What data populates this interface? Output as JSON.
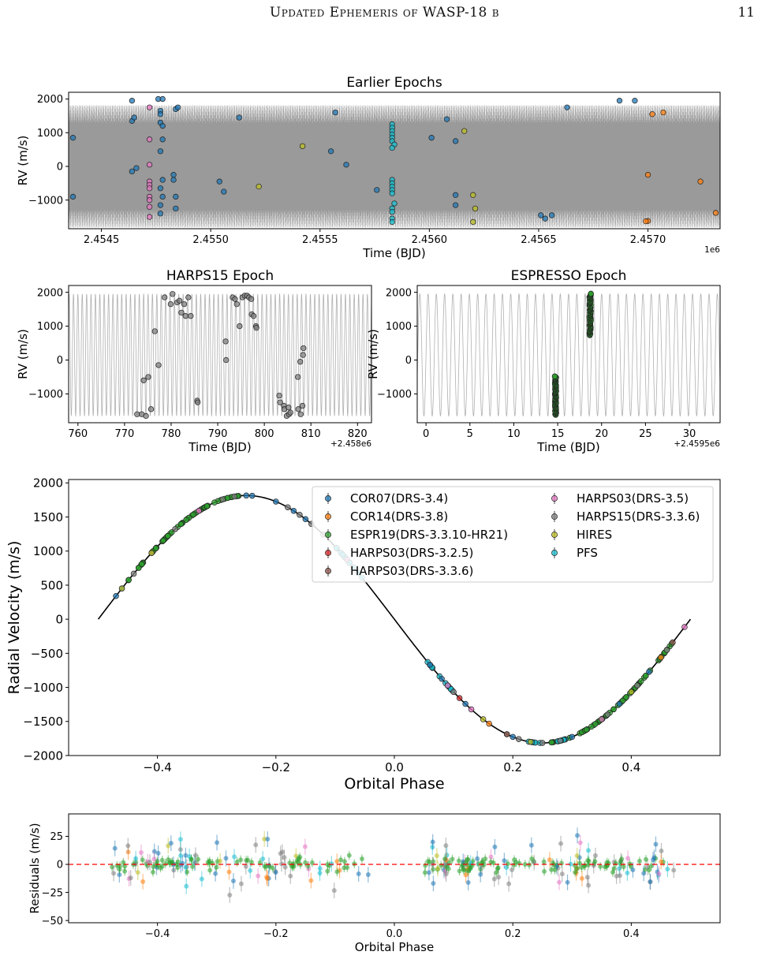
{
  "header": {
    "title": "Updated Ephemeris of WASP-18 b",
    "page_number": "11"
  },
  "colors": {
    "COR07": "#1f77b4",
    "COR14": "#ff7f0e",
    "ESPR19": "#2ca02c",
    "HARPS03_325": "#d62728",
    "HARPS03_336": "#8c564b",
    "HARPS03_35": "#e377c2",
    "HARPS15": "#7f7f7f",
    "HIRES": "#bcbd22",
    "PFS": "#17becf",
    "model": "#9a9a9a",
    "zero_line": "#ff0000"
  },
  "model": {
    "period_days": 0.94145,
    "semi_amplitude": 1815
  },
  "chart_data": [
    {
      "id": "earlier",
      "type": "scatter",
      "title": "Earlier Epochs",
      "xlabel": "Time (BJD)",
      "ylabel": "RV (m/s)",
      "x_offset_label": "1e6",
      "xlim": [
        2.45435,
        2.45733
      ],
      "ylim": [
        -1850,
        2200
      ],
      "xticks": [
        2.4545,
        2.455,
        2.4555,
        2.456,
        2.4565,
        2.457
      ],
      "xtick_labels": [
        "2.4545",
        "2.4550",
        "2.4555",
        "2.4560",
        "2.4565",
        "2.4570"
      ],
      "yticks": [
        -1000,
        0,
        1000,
        2000
      ],
      "ytick_labels": [
        "−1000",
        "0",
        "1000",
        "2000"
      ],
      "series": [
        {
          "key": "COR07",
          "points": [
            [
              2.45437,
              850
            ],
            [
              2.45437,
              -900
            ],
            [
              2.45464,
              1950
            ],
            [
              2.45464,
              1350
            ],
            [
              2.45464,
              -150
            ],
            [
              2.45465,
              1450
            ],
            [
              2.45466,
              -50
            ],
            [
              2.45476,
              2000
            ],
            [
              2.45478,
              2000
            ],
            [
              2.45477,
              1650
            ],
            [
              2.45477,
              1550
            ],
            [
              2.45477,
              1300
            ],
            [
              2.45478,
              1200
            ],
            [
              2.45478,
              800
            ],
            [
              2.45477,
              450
            ],
            [
              2.45478,
              -400
            ],
            [
              2.45477,
              -650
            ],
            [
              2.45478,
              -900
            ],
            [
              2.45477,
              -1150
            ],
            [
              2.45477,
              -1400
            ],
            [
              2.45484,
              1700
            ],
            [
              2.45485,
              1750
            ],
            [
              2.45483,
              -250
            ],
            [
              2.45483,
              -400
            ],
            [
              2.45484,
              -900
            ],
            [
              2.45484,
              -1250
            ],
            [
              2.45504,
              -450
            ],
            [
              2.45506,
              -750
            ],
            [
              2.45513,
              1450
            ],
            [
              2.45555,
              450
            ],
            [
              2.45557,
              1600
            ],
            [
              2.45562,
              50
            ],
            [
              2.45576,
              -700
            ],
            [
              2.45601,
              850
            ],
            [
              2.45608,
              1400
            ],
            [
              2.45612,
              750
            ],
            [
              2.45612,
              -850
            ],
            [
              2.45612,
              -1150
            ],
            [
              2.45651,
              -1450
            ],
            [
              2.45653,
              -1550
            ],
            [
              2.45656,
              -1450
            ],
            [
              2.45663,
              1750
            ],
            [
              2.45687,
              1950
            ],
            [
              2.45694,
              1950
            ]
          ]
        },
        {
          "key": "HARPS03_35",
          "points": [
            [
              2.45472,
              1750
            ],
            [
              2.45472,
              800
            ],
            [
              2.45472,
              50
            ],
            [
              2.45472,
              -450
            ],
            [
              2.45472,
              -550
            ],
            [
              2.45472,
              -650
            ],
            [
              2.45472,
              -900
            ],
            [
              2.45472,
              -1000
            ],
            [
              2.45472,
              -1200
            ],
            [
              2.45472,
              -1500
            ]
          ]
        },
        {
          "key": "HIRES",
          "points": [
            [
              2.45522,
              -600
            ],
            [
              2.45542,
              600
            ],
            [
              2.45616,
              1050
            ],
            [
              2.4562,
              -850
            ],
            [
              2.45621,
              -1250
            ],
            [
              2.4562,
              -1650
            ]
          ]
        },
        {
          "key": "PFS",
          "points": [
            [
              2.45583,
              1250
            ],
            [
              2.45583,
              1150
            ],
            [
              2.45583,
              1050
            ],
            [
              2.45583,
              950
            ],
            [
              2.45583,
              850
            ],
            [
              2.45583,
              750
            ],
            [
              2.45584,
              650
            ],
            [
              2.45583,
              550
            ],
            [
              2.45583,
              -400
            ],
            [
              2.45583,
              -500
            ],
            [
              2.45583,
              -600
            ],
            [
              2.45583,
              -700
            ],
            [
              2.45583,
              -800
            ],
            [
              2.45584,
              -1100
            ],
            [
              2.45583,
              -1250
            ],
            [
              2.45583,
              -1350
            ],
            [
              2.45583,
              -1550
            ],
            [
              2.45583,
              -1650
            ]
          ]
        },
        {
          "key": "COR14",
          "points": [
            [
              2.45702,
              1550
            ],
            [
              2.45707,
              1600
            ],
            [
              2.457,
              -250
            ],
            [
              2.457,
              -1620
            ],
            [
              2.45699,
              -1630
            ],
            [
              2.45724,
              -450
            ],
            [
              2.45731,
              -1380
            ]
          ]
        }
      ]
    },
    {
      "id": "harps15",
      "type": "scatter",
      "title": "HARPS15 Epoch",
      "xlabel": "Time (BJD)",
      "ylabel": "RV (m/s)",
      "x_offset_label": "+2.458e6",
      "xlim": [
        758,
        823
      ],
      "ylim": [
        -1850,
        2200
      ],
      "xticks": [
        760,
        770,
        780,
        790,
        800,
        810,
        820
      ],
      "xtick_labels": [
        "760",
        "770",
        "780",
        "790",
        "800",
        "810",
        "820"
      ],
      "yticks": [
        -1000,
        0,
        1000,
        2000
      ],
      "ytick_labels": [
        "−1000",
        "0",
        "1000",
        "2000"
      ],
      "series": [
        {
          "key": "HARPS15",
          "points": [
            [
              772.7,
              -1600
            ],
            [
              773.7,
              -1600
            ],
            [
              774.6,
              -1650
            ],
            [
              774.1,
              -600
            ],
            [
              775.1,
              -500
            ],
            [
              775.7,
              -1450
            ],
            [
              776.5,
              850
            ],
            [
              777.3,
              -150
            ],
            [
              778.6,
              1850
            ],
            [
              779.9,
              1650
            ],
            [
              780.3,
              1950
            ],
            [
              781.3,
              1700
            ],
            [
              781.8,
              1750
            ],
            [
              782.2,
              1400
            ],
            [
              782.8,
              1650
            ],
            [
              783.1,
              1300
            ],
            [
              783.7,
              1850
            ],
            [
              784.2,
              1300
            ],
            [
              785.6,
              -1200
            ],
            [
              785.7,
              -1250
            ],
            [
              791.7,
              550
            ],
            [
              791.8,
              0
            ],
            [
              793.2,
              1850
            ],
            [
              793.7,
              1800
            ],
            [
              794.1,
              1650
            ],
            [
              794.7,
              1000
            ],
            [
              795.3,
              1850
            ],
            [
              795.8,
              1900
            ],
            [
              796.3,
              1900
            ],
            [
              796.7,
              1850
            ],
            [
              797.2,
              1800
            ],
            [
              797.3,
              1350
            ],
            [
              797.7,
              1300
            ],
            [
              798.2,
              1000
            ],
            [
              798.3,
              950
            ],
            [
              803.2,
              -1050
            ],
            [
              803.4,
              -1250
            ],
            [
              804.2,
              -1350
            ],
            [
              804.3,
              -1450
            ],
            [
              804.8,
              -1650
            ],
            [
              805.3,
              -1600
            ],
            [
              805.6,
              -1550
            ],
            [
              805.2,
              -1400
            ],
            [
              807.2,
              -500
            ],
            [
              807.3,
              -1450
            ],
            [
              807.7,
              -50
            ],
            [
              807.8,
              -1600
            ],
            [
              808.2,
              -1350
            ],
            [
              808.3,
              150
            ],
            [
              808.4,
              350
            ]
          ]
        }
      ]
    },
    {
      "id": "espresso",
      "type": "scatter",
      "title": "ESPRESSO Epoch",
      "xlabel": "Time (BJD)",
      "ylabel": "RV (m/s)",
      "x_offset_label": "+2.4595e6",
      "xlim": [
        -1,
        33.5
      ],
      "ylim": [
        -1850,
        2200
      ],
      "xticks": [
        0,
        5,
        10,
        15,
        20,
        25,
        30
      ],
      "xtick_labels": [
        "0",
        "5",
        "10",
        "15",
        "20",
        "25",
        "30"
      ],
      "yticks": [
        -1000,
        0,
        1000,
        2000
      ],
      "ytick_labels": [
        "−1000",
        "0",
        "1000",
        "2000"
      ],
      "series": [
        {
          "key": "ESPR19",
          "clusters": [
            {
              "x": 14.75,
              "y_min": -1620,
              "y_max": -480
            },
            {
              "x": 18.7,
              "y_min": 730,
              "y_max": 1960
            }
          ]
        }
      ]
    },
    {
      "id": "phase",
      "type": "scatter",
      "xlabel": "Orbital Phase",
      "ylabel": "Radial Velocity (m/s)",
      "xlim": [
        -0.55,
        0.55
      ],
      "ylim": [
        -2000,
        2050
      ],
      "xticks": [
        -0.4,
        -0.2,
        0.0,
        0.2,
        0.4
      ],
      "xtick_labels": [
        "−0.4",
        "−0.2",
        "0.0",
        "0.2",
        "0.4"
      ],
      "yticks": [
        -2000,
        -1500,
        -1000,
        -500,
        0,
        500,
        1000,
        1500,
        2000
      ],
      "ytick_labels": [
        "−2000",
        "−1500",
        "−1000",
        "−500",
        "0",
        "500",
        "1000",
        "1500",
        "2000"
      ],
      "legend": {
        "position": "upper-right",
        "entries": [
          {
            "key": "COR07",
            "label": "COR07(DRS-3.4)"
          },
          {
            "key": "COR14",
            "label": "COR14(DRS-3.8)"
          },
          {
            "key": "ESPR19",
            "label": "ESPR19(DRS-3.3.10-HR21)"
          },
          {
            "key": "HARPS03_325",
            "label": "HARPS03(DRS-3.2.5)"
          },
          {
            "key": "HARPS03_336",
            "label": "HARPS03(DRS-3.3.6)"
          },
          {
            "key": "HARPS03_35",
            "label": "HARPS03(DRS-3.5)"
          },
          {
            "key": "HARPS15",
            "label": "HARPS15(DRS-3.3.6)"
          },
          {
            "key": "HIRES",
            "label": "HIRES"
          },
          {
            "key": "PFS",
            "label": "PFS"
          }
        ]
      },
      "series": [
        {
          "key": "ESPR19",
          "phase_ranges": [
            [
              -0.45,
              -0.26
            ],
            [
              0.26,
              0.47
            ]
          ],
          "n": 120
        },
        {
          "key": "PFS",
          "phase_ranges": [
            [
              0.05,
              0.1
            ],
            [
              0.22,
              0.3
            ],
            [
              -0.1,
              -0.05
            ]
          ],
          "n": 35
        },
        {
          "key": "COR07",
          "phases": [
            -0.47,
            -0.46,
            -0.25,
            -0.24,
            -0.2,
            -0.17,
            -0.15,
            0.06,
            0.08,
            0.12,
            0.2,
            0.3,
            0.38,
            0.43
          ]
        },
        {
          "key": "HARPS15",
          "phases": [
            -0.44,
            -0.41,
            -0.37,
            -0.33,
            -0.29,
            -0.27,
            -0.18,
            -0.16,
            -0.14,
            -0.12,
            0.1,
            0.19,
            0.21,
            0.25,
            0.28,
            0.36,
            0.41,
            0.46
          ]
        },
        {
          "key": "HARPS03_35",
          "phases": [
            -0.33,
            -0.08,
            0.09,
            0.13,
            0.35,
            0.49
          ]
        },
        {
          "key": "HIRES",
          "phases": [
            -0.46,
            -0.41,
            0.15,
            0.23,
            0.4
          ]
        },
        {
          "key": "COR14",
          "phases": [
            0.16,
            0.45
          ]
        },
        {
          "key": "HARPS03_336",
          "phases": [
            0.19,
            0.47
          ]
        },
        {
          "key": "HARPS03_325",
          "phases": [
            0.11
          ]
        }
      ]
    },
    {
      "id": "residuals",
      "type": "scatter",
      "xlabel": "Orbital Phase",
      "ylabel": "Residuals (m/s)",
      "xlim": [
        -0.55,
        0.55
      ],
      "ylim": [
        -52,
        45
      ],
      "xticks": [
        -0.4,
        -0.2,
        0.0,
        0.2,
        0.4
      ],
      "xtick_labels": [
        "−0.4",
        "−0.2",
        "0.0",
        "0.2",
        "0.4"
      ],
      "yticks": [
        -50,
        -25,
        0,
        25
      ],
      "ytick_labels": [
        "−50",
        "−25",
        "0",
        "25"
      ],
      "zero_line": 0
    }
  ]
}
